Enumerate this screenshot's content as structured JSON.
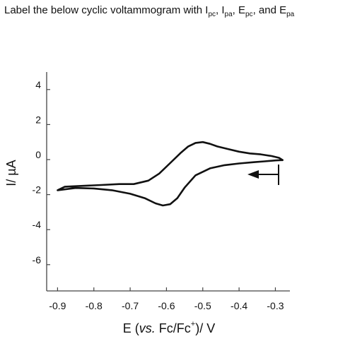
{
  "question": {
    "prefix": "Label the below cyclic voltammogram with I",
    "sub1": "pc",
    "sep1": ", I",
    "sub2": "pa",
    "sep2": ", E",
    "sub3": "pc",
    "sep3": ", and E",
    "sub4": "pa"
  },
  "chart_data": {
    "type": "line",
    "xlabel_parts": {
      "pre": "E (",
      "italic": "vs.",
      "mid": " Fc/Fc",
      "sup": "+",
      "post": ")/ V"
    },
    "ylabel": "I/ µA",
    "xlim": [
      -0.93,
      -0.26
    ],
    "ylim": [
      -7.5,
      5.0
    ],
    "x_ticks": [
      -0.9,
      -0.8,
      -0.7,
      -0.6,
      -0.5,
      -0.4,
      -0.3
    ],
    "x_tick_labels": [
      "-0.9",
      "-0.8",
      "-0.7",
      "-0.6",
      "-0.5",
      "-0.4",
      "-0.3"
    ],
    "y_ticks": [
      4,
      2,
      0,
      -2,
      -4,
      -6
    ],
    "y_tick_labels": [
      "4",
      "2",
      "0",
      "-2",
      "-4",
      "-6"
    ],
    "scan_direction": "toward negative potential",
    "grid": false,
    "series": [
      {
        "x": [
          -0.28,
          -0.3,
          -0.33,
          -0.36,
          -0.4,
          -0.44,
          -0.48,
          -0.52,
          -0.55,
          -0.57,
          -0.59,
          -0.61,
          -0.63,
          -0.66,
          -0.7,
          -0.75,
          -0.8,
          -0.85,
          -0.9,
          -0.88,
          -0.83,
          -0.78,
          -0.73,
          -0.69,
          -0.65,
          -0.62,
          -0.59,
          -0.56,
          -0.54,
          -0.52,
          -0.5,
          -0.48,
          -0.46,
          -0.43,
          -0.4,
          -0.37,
          -0.34,
          -0.31,
          -0.29,
          -0.28
        ],
        "y": [
          -0.03,
          -0.05,
          -0.1,
          -0.15,
          -0.22,
          -0.32,
          -0.5,
          -0.9,
          -1.6,
          -2.2,
          -2.55,
          -2.62,
          -2.5,
          -2.2,
          -1.95,
          -1.75,
          -1.65,
          -1.62,
          -1.75,
          -1.55,
          -1.5,
          -1.45,
          -1.4,
          -1.4,
          -1.2,
          -0.8,
          -0.2,
          0.4,
          0.75,
          0.95,
          1.0,
          0.9,
          0.75,
          0.6,
          0.45,
          0.35,
          0.3,
          0.2,
          0.1,
          -0.03
        ]
      }
    ]
  }
}
